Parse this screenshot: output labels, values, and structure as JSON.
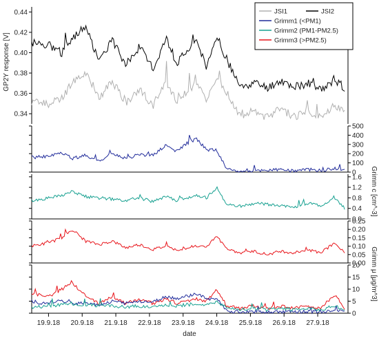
{
  "chart_data": {
    "type": "line",
    "xlabel": "date",
    "x_ticks": [
      "19.9.18",
      "20.9.18",
      "21.9.18",
      "22.9.18",
      "23.9.18",
      "24.9.18",
      "25.9.18",
      "26.9.18",
      "27.9.18"
    ],
    "legend": {
      "placement": "top-right"
    },
    "colors": {
      "JSI1": "#b0b0b0",
      "JSI2": "#000000",
      "Grimm1": "#1f2a9a",
      "Grimm2": "#16a090",
      "Grimm3": "#e8141a"
    },
    "panels": [
      {
        "ylabel": "GP2Y response [V]",
        "ylim": [
          0.33,
          0.445
        ],
        "y_ticks": [
          "0.34",
          "0.36",
          "0.38",
          "0.40",
          "0.42",
          "0.44"
        ],
        "series": [
          {
            "name": "JSI1",
            "x": [
              0,
              0.5,
              0.9,
              1.2,
              1.6,
              2.0,
              2.4,
              2.8,
              3.2,
              3.6,
              4.0,
              4.3,
              4.6,
              4.9,
              5.2,
              5.5,
              5.8,
              6.2,
              6.6,
              7.0,
              7.4,
              7.8,
              8.2,
              8.6,
              9.0,
              9.3
            ],
            "y": [
              0.352,
              0.35,
              0.355,
              0.37,
              0.382,
              0.356,
              0.372,
              0.35,
              0.364,
              0.348,
              0.372,
              0.353,
              0.36,
              0.371,
              0.35,
              0.378,
              0.36,
              0.337,
              0.343,
              0.336,
              0.345,
              0.337,
              0.343,
              0.335,
              0.348,
              0.345
            ]
          },
          {
            "name": "JSI2",
            "x": [
              0,
              0.5,
              0.9,
              1.2,
              1.6,
              2.0,
              2.4,
              2.8,
              3.2,
              3.6,
              4.0,
              4.3,
              4.6,
              4.9,
              5.2,
              5.5,
              5.8,
              6.2,
              6.6,
              7.0,
              7.4,
              7.8,
              8.2,
              8.6,
              9.0,
              9.3
            ],
            "y": [
              0.41,
              0.408,
              0.4,
              0.415,
              0.425,
              0.393,
              0.412,
              0.388,
              0.406,
              0.384,
              0.415,
              0.39,
              0.402,
              0.41,
              0.385,
              0.416,
              0.393,
              0.365,
              0.37,
              0.365,
              0.372,
              0.366,
              0.37,
              0.363,
              0.374,
              0.365
            ]
          }
        ]
      },
      {
        "ylabel": "Grimm c [cm^-3]",
        "ylim": [
          0,
          500
        ],
        "y_ticks": [
          "0",
          "100",
          "200",
          "300",
          "400",
          "500"
        ],
        "series": [
          {
            "name": "Grimm1 (<PM1)",
            "x": [
              0,
              0.5,
              0.9,
              1.2,
              1.6,
              2.0,
              2.4,
              2.8,
              3.2,
              3.6,
              4.0,
              4.3,
              4.6,
              4.9,
              5.2,
              5.5,
              5.8,
              6.2,
              6.6,
              7.0,
              7.4,
              7.8,
              8.2,
              8.6,
              9.0,
              9.3
            ],
            "y": [
              160,
              170,
              210,
              150,
              180,
              120,
              200,
              150,
              190,
              180,
              290,
              220,
              310,
              360,
              240,
              240,
              30,
              10,
              15,
              20,
              25,
              15,
              30,
              15,
              40,
              25
            ]
          }
        ]
      },
      {
        "ylabel": "",
        "ylim": [
          0,
          1.7
        ],
        "y_ticks": [
          "0.0",
          "0.4",
          "0.8",
          "1.2",
          "1.6"
        ],
        "series": [
          {
            "name": "Grimm2 (PM1-PM2.5)",
            "x": [
              0,
              0.5,
              0.9,
              1.2,
              1.6,
              2.0,
              2.4,
              2.8,
              3.2,
              3.6,
              4.0,
              4.3,
              4.6,
              4.9,
              5.2,
              5.5,
              5.8,
              6.2,
              6.6,
              7.0,
              7.4,
              7.8,
              8.2,
              8.6,
              9.0,
              9.3
            ],
            "y": [
              0.7,
              0.8,
              0.9,
              1.05,
              0.85,
              0.8,
              0.75,
              0.7,
              0.8,
              0.65,
              0.85,
              0.7,
              0.8,
              0.9,
              0.8,
              1.2,
              0.55,
              0.45,
              0.6,
              0.55,
              0.5,
              0.45,
              0.6,
              0.5,
              0.8,
              0.4
            ]
          }
        ]
      },
      {
        "ylabel": "",
        "ylim": [
          0,
          0.25
        ],
        "y_ticks": [
          "0.00",
          "0.05",
          "0.10",
          "0.15",
          "0.20",
          "0.25"
        ],
        "series": [
          {
            "name": "Grimm3 (>PM2.5)",
            "x": [
              0,
              0.5,
              0.9,
              1.2,
              1.6,
              2.0,
              2.4,
              2.8,
              3.2,
              3.6,
              4.0,
              4.3,
              4.6,
              4.9,
              5.2,
              5.5,
              5.8,
              6.2,
              6.6,
              7.0,
              7.4,
              7.8,
              8.2,
              8.6,
              9.0,
              9.3
            ],
            "y": [
              0.1,
              0.12,
              0.15,
              0.2,
              0.13,
              0.11,
              0.13,
              0.09,
              0.11,
              0.08,
              0.1,
              0.08,
              0.09,
              0.1,
              0.1,
              0.16,
              0.08,
              0.06,
              0.07,
              0.05,
              0.07,
              0.06,
              0.08,
              0.06,
              0.12,
              0.06
            ]
          }
        ]
      },
      {
        "ylabel": "Grimm μ [μg/m^3]",
        "ylim": [
          0,
          20
        ],
        "y_ticks": [
          "0",
          "5",
          "10",
          "15",
          "20"
        ],
        "series": [
          {
            "name": "Grimm3 (>PM2.5)",
            "x": [
              0,
              0.5,
              0.9,
              1.2,
              1.6,
              2.0,
              2.4,
              2.8,
              3.2,
              3.6,
              4.0,
              4.3,
              4.6,
              4.9,
              5.2,
              5.5,
              5.8,
              6.2,
              6.6,
              7.0,
              7.4,
              7.8,
              8.2,
              8.6,
              9.0,
              9.3
            ],
            "y": [
              8,
              7,
              10,
              13,
              7,
              4,
              7,
              4,
              6,
              4,
              6,
              4,
              5,
              6,
              5,
              10,
              3,
              2,
              3,
              2,
              3,
              2,
              3,
              2,
              8,
              2
            ]
          },
          {
            "name": "Grimm1 (<PM1)",
            "x": [
              0,
              0.5,
              0.9,
              1.2,
              1.6,
              2.0,
              2.4,
              2.8,
              3.2,
              3.6,
              4.0,
              4.3,
              4.6,
              4.9,
              5.2,
              5.5,
              5.8,
              6.2,
              6.6,
              7.0,
              7.4,
              7.8,
              8.2,
              8.6,
              9.0,
              9.3
            ],
            "y": [
              4,
              4.5,
              5,
              4,
              4.5,
              3.5,
              5,
              4,
              5,
              4.5,
              7,
              6,
              7,
              8,
              6,
              6,
              1,
              0.5,
              0.5,
              0.5,
              0.6,
              0.5,
              0.7,
              0.5,
              1,
              0.6
            ]
          },
          {
            "name": "Grimm2 (PM1-PM2.5)",
            "x": [
              0,
              0.5,
              0.9,
              1.2,
              1.6,
              2.0,
              2.4,
              2.8,
              3.2,
              3.6,
              4.0,
              4.3,
              4.6,
              4.9,
              5.2,
              5.5,
              5.8,
              6.2,
              6.6,
              7.0,
              7.4,
              7.8,
              8.2,
              8.6,
              9.0,
              9.3
            ],
            "y": [
              2.5,
              3,
              3.5,
              4,
              3.5,
              3,
              3,
              2.5,
              3,
              2.5,
              3.5,
              3,
              3.5,
              4,
              3.5,
              5,
              2,
              1.5,
              2,
              1.5,
              2,
              1.5,
              2,
              1.5,
              3,
              1.5
            ]
          }
        ]
      }
    ],
    "legend_entries": [
      "JSI1",
      "JSI2",
      "Grimm1 (<PM1)",
      "Grimm2 (PM1-PM2.5)",
      "Grimm3 (>PM2.5)"
    ]
  }
}
